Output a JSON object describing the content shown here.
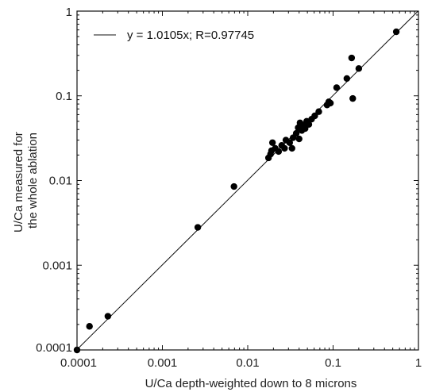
{
  "chart_data": {
    "type": "scatter",
    "xscale": "log",
    "yscale": "log",
    "xlim": [
      0.0001,
      1
    ],
    "ylim": [
      0.0001,
      1
    ],
    "xlabel": "U/Ca depth-weighted down to 8 microns",
    "ylabel_lines": [
      "U/Ca measured for",
      "the whole ablation"
    ],
    "xticks": [
      {
        "value": 0.0001,
        "label": "0.0001"
      },
      {
        "value": 0.001,
        "label": "0.001"
      },
      {
        "value": 0.01,
        "label": "0.01"
      },
      {
        "value": 0.1,
        "label": "0.1"
      },
      {
        "value": 1,
        "label": "1"
      }
    ],
    "yticks": [
      {
        "value": 0.0001,
        "label": "0.0001"
      },
      {
        "value": 0.001,
        "label": "0.001"
      },
      {
        "value": 0.01,
        "label": "0.01"
      },
      {
        "value": 0.1,
        "label": "0.1"
      },
      {
        "value": 1,
        "label": "1"
      }
    ],
    "grid": false,
    "legend_position": "top-left",
    "fit": {
      "label": "y = 1.0105x; R=0.97745",
      "slope": 1.0105
    },
    "points": [
      {
        "x": 0.0001,
        "y": 0.0001
      },
      {
        "x": 0.00014,
        "y": 0.00019
      },
      {
        "x": 0.00023,
        "y": 0.00025
      },
      {
        "x": 0.0026,
        "y": 0.0028
      },
      {
        "x": 0.0069,
        "y": 0.0085
      },
      {
        "x": 0.0175,
        "y": 0.0185
      },
      {
        "x": 0.0185,
        "y": 0.0205
      },
      {
        "x": 0.019,
        "y": 0.0225
      },
      {
        "x": 0.0195,
        "y": 0.028
      },
      {
        "x": 0.021,
        "y": 0.024
      },
      {
        "x": 0.023,
        "y": 0.022
      },
      {
        "x": 0.025,
        "y": 0.026
      },
      {
        "x": 0.027,
        "y": 0.024
      },
      {
        "x": 0.028,
        "y": 0.03
      },
      {
        "x": 0.031,
        "y": 0.028
      },
      {
        "x": 0.033,
        "y": 0.024
      },
      {
        "x": 0.034,
        "y": 0.032
      },
      {
        "x": 0.037,
        "y": 0.036
      },
      {
        "x": 0.039,
        "y": 0.042
      },
      {
        "x": 0.04,
        "y": 0.031
      },
      {
        "x": 0.041,
        "y": 0.048
      },
      {
        "x": 0.043,
        "y": 0.039
      },
      {
        "x": 0.045,
        "y": 0.045
      },
      {
        "x": 0.047,
        "y": 0.041
      },
      {
        "x": 0.049,
        "y": 0.05
      },
      {
        "x": 0.052,
        "y": 0.046
      },
      {
        "x": 0.056,
        "y": 0.053
      },
      {
        "x": 0.061,
        "y": 0.058
      },
      {
        "x": 0.068,
        "y": 0.065
      },
      {
        "x": 0.085,
        "y": 0.078
      },
      {
        "x": 0.089,
        "y": 0.085
      },
      {
        "x": 0.093,
        "y": 0.082
      },
      {
        "x": 0.11,
        "y": 0.125
      },
      {
        "x": 0.145,
        "y": 0.16
      },
      {
        "x": 0.165,
        "y": 0.28
      },
      {
        "x": 0.17,
        "y": 0.093
      },
      {
        "x": 0.2,
        "y": 0.21
      },
      {
        "x": 0.55,
        "y": 0.57
      }
    ]
  }
}
